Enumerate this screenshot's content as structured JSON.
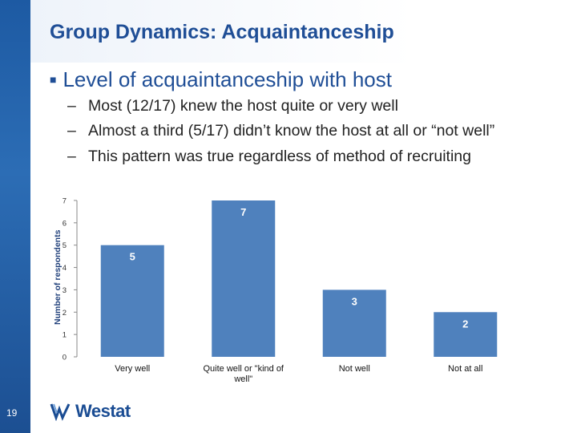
{
  "slide": {
    "title": "Group Dynamics: Acquaintanceship",
    "bullet": "Level of acquaintanceship with host",
    "sub_bullets": [
      "Most (12/17) knew the host quite or very well",
      "Almost a third (5/17) didn’t know the host at all or “not well”",
      "This pattern was true regardless of method of recruiting"
    ],
    "page_number": "19",
    "logo_text": "Westat"
  },
  "colors": {
    "bar": "#4f81bd",
    "title": "#1f4e96",
    "strip": "#1d5aa3"
  },
  "chart_data": {
    "type": "bar",
    "categories": [
      "Very well",
      "Quite well or \"kind of well\"",
      "Not well",
      "Not at all"
    ],
    "values": [
      5,
      7,
      3,
      2
    ],
    "title": "",
    "xlabel": "",
    "ylabel": "Number of respondents",
    "ylim": [
      0,
      7
    ],
    "yticks": [
      0,
      1,
      2,
      3,
      4,
      5,
      6,
      7
    ],
    "data_labels": true,
    "grid": false,
    "legend": "none"
  }
}
